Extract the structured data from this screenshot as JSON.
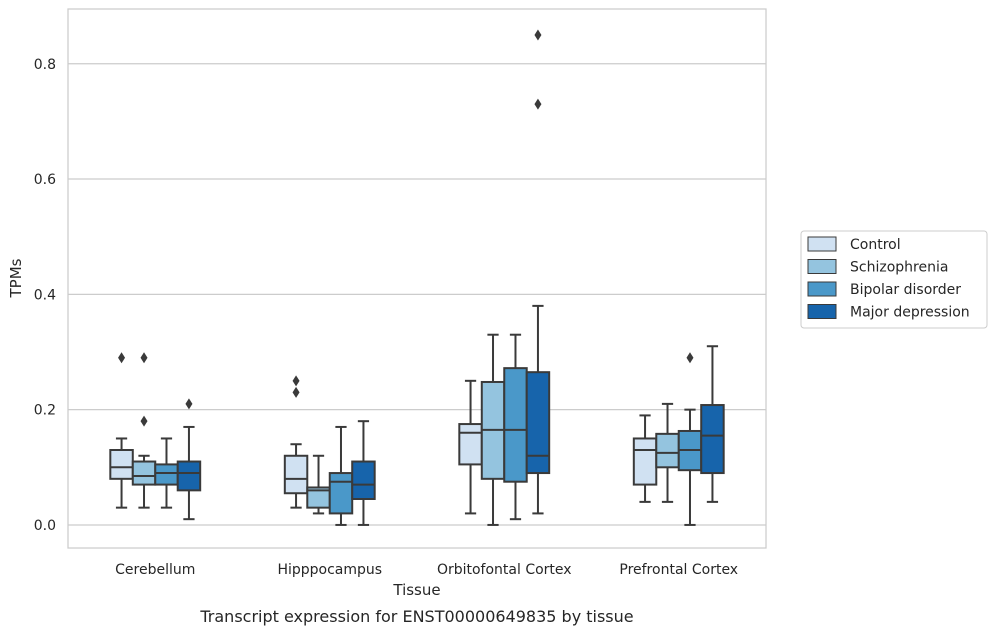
{
  "chart_data": {
    "type": "box",
    "xlabel": "Tissue",
    "ylabel": "TPMs",
    "caption": "Transcript expression for ENST00000649835 by tissue",
    "ylim": [
      -0.04,
      0.895
    ],
    "yticks": [
      0.0,
      0.2,
      0.4,
      0.6,
      0.8
    ],
    "ytick_labels": [
      "0.0",
      "0.2",
      "0.4",
      "0.6",
      "0.8"
    ],
    "grid": "horizontal",
    "legend_position": "right",
    "categories": [
      "Cerebellum",
      "Hipppocampus",
      "Orbitofontal Cortex",
      "Prefrontal Cortex"
    ],
    "series": [
      {
        "name": "Control",
        "color": "#d0e1f2",
        "boxes": [
          {
            "whislo": 0.03,
            "q1": 0.08,
            "med": 0.1,
            "q3": 0.13,
            "whishi": 0.15,
            "fliers": [
              0.29
            ]
          },
          {
            "whislo": 0.03,
            "q1": 0.055,
            "med": 0.08,
            "q3": 0.12,
            "whishi": 0.14,
            "fliers": [
              0.23,
              0.25
            ]
          },
          {
            "whislo": 0.02,
            "q1": 0.105,
            "med": 0.16,
            "q3": 0.175,
            "whishi": 0.25,
            "fliers": []
          },
          {
            "whislo": 0.04,
            "q1": 0.07,
            "med": 0.13,
            "q3": 0.15,
            "whishi": 0.19,
            "fliers": []
          }
        ]
      },
      {
        "name": "Schizophrenia",
        "color": "#94c4df",
        "boxes": [
          {
            "whislo": 0.03,
            "q1": 0.07,
            "med": 0.085,
            "q3": 0.11,
            "whishi": 0.12,
            "fliers": [
              0.18,
              0.29
            ]
          },
          {
            "whislo": 0.02,
            "q1": 0.03,
            "med": 0.06,
            "q3": 0.065,
            "whishi": 0.12,
            "fliers": []
          },
          {
            "whislo": 0.0,
            "q1": 0.08,
            "med": 0.165,
            "q3": 0.248,
            "whishi": 0.33,
            "fliers": []
          },
          {
            "whislo": 0.04,
            "q1": 0.1,
            "med": 0.125,
            "q3": 0.158,
            "whishi": 0.21,
            "fliers": []
          }
        ]
      },
      {
        "name": "Bipolar disorder",
        "color": "#4a98c9",
        "boxes": [
          {
            "whislo": 0.03,
            "q1": 0.07,
            "med": 0.09,
            "q3": 0.105,
            "whishi": 0.15,
            "fliers": []
          },
          {
            "whislo": 0.0,
            "q1": 0.02,
            "med": 0.075,
            "q3": 0.09,
            "whishi": 0.17,
            "fliers": []
          },
          {
            "whislo": 0.01,
            "q1": 0.075,
            "med": 0.165,
            "q3": 0.272,
            "whishi": 0.33,
            "fliers": []
          },
          {
            "whislo": 0.0,
            "q1": 0.095,
            "med": 0.13,
            "q3": 0.163,
            "whishi": 0.2,
            "fliers": [
              0.29
            ]
          }
        ]
      },
      {
        "name": "Major depression",
        "color": "#1764ab",
        "boxes": [
          {
            "whislo": 0.01,
            "q1": 0.06,
            "med": 0.09,
            "q3": 0.11,
            "whishi": 0.17,
            "fliers": [
              0.21
            ]
          },
          {
            "whislo": 0.0,
            "q1": 0.045,
            "med": 0.07,
            "q3": 0.11,
            "whishi": 0.18,
            "fliers": []
          },
          {
            "whislo": 0.02,
            "q1": 0.09,
            "med": 0.12,
            "q3": 0.265,
            "whishi": 0.38,
            "fliers": [
              0.73,
              0.85
            ]
          },
          {
            "whislo": 0.04,
            "q1": 0.09,
            "med": 0.155,
            "q3": 0.208,
            "whishi": 0.31,
            "fliers": []
          }
        ]
      }
    ]
  }
}
